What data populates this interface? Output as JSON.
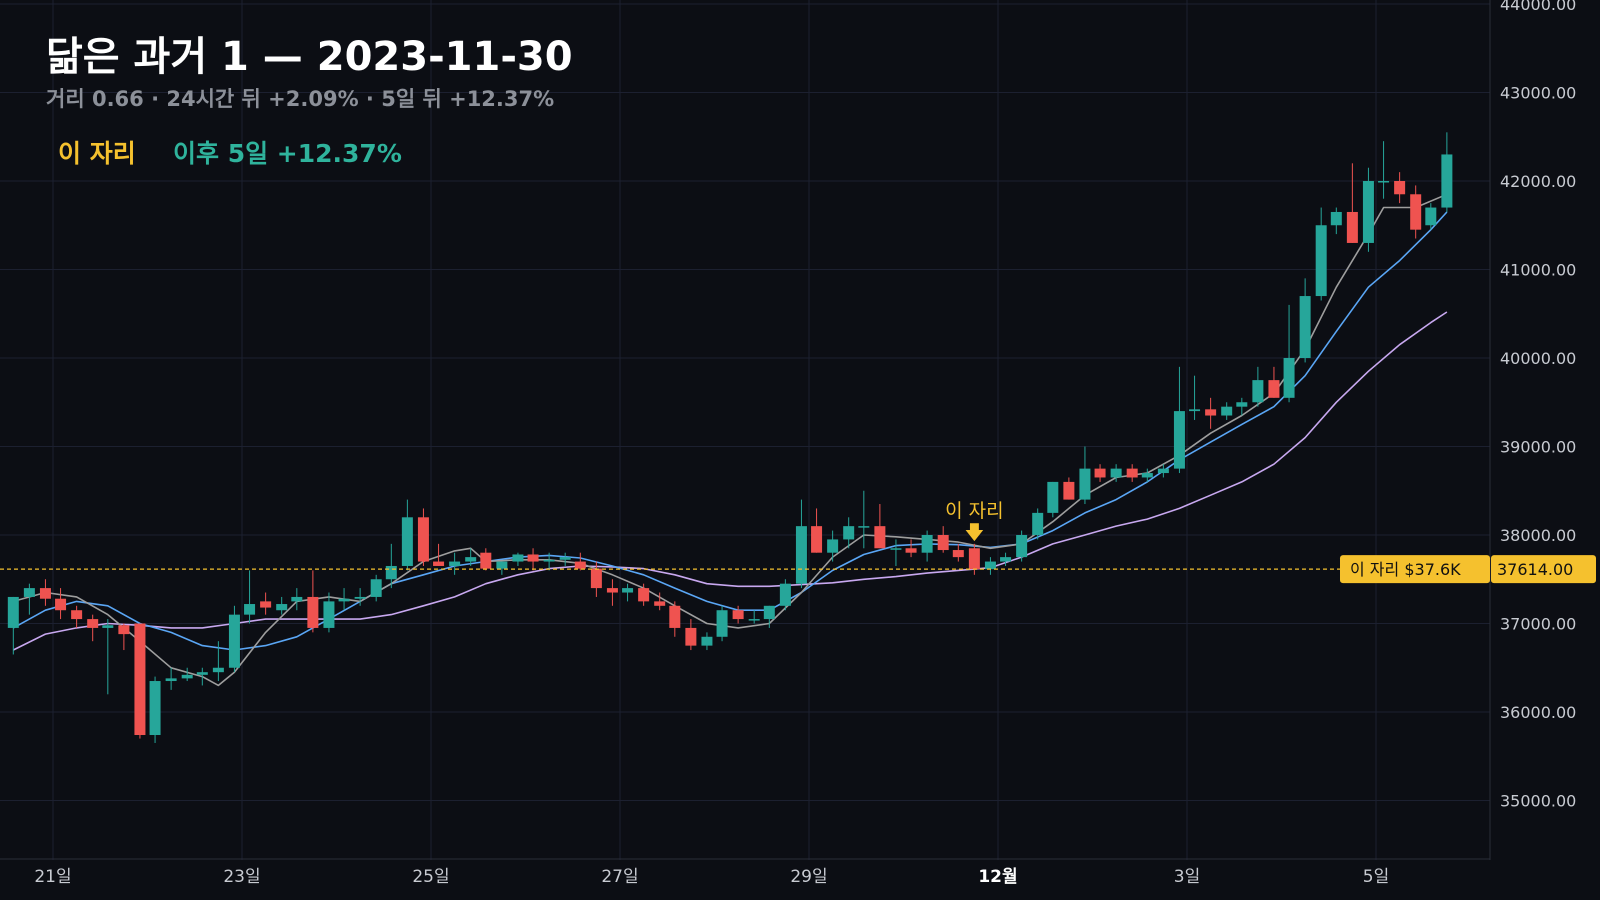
{
  "header": {
    "title": "닮은 과거 1 — 2023-11-30",
    "subtitle": "거리 0.66 · 24시간 뒤 +2.09% · 5일 뒤 +12.37%",
    "highlight_label": "이 자리",
    "highlight_result": "이후 5일 +12.37%"
  },
  "colors": {
    "background": "#0c0e14",
    "grid": "#1c2030",
    "up": "#26a69a",
    "down": "#ef5350",
    "ma_fast": "#9e9e9e",
    "ma_mid": "#5aa6f5",
    "ma_slow": "#c8a8f0",
    "marker": "#f5c12e"
  },
  "chart_data": {
    "type": "candlestick",
    "x_unit": "day-of-month (Nov 20 – Dec 5, 2023)",
    "ylim": [
      34300,
      44000
    ],
    "y_ticks": [
      "44000.00",
      "43000.00",
      "42000.00",
      "41000.00",
      "40000.00",
      "39000.00",
      "38000.00",
      "37000.00",
      "36000.00",
      "35000.00"
    ],
    "x_ticks": [
      {
        "x": 21,
        "label": "21일",
        "bold": false
      },
      {
        "x": 23,
        "label": "23일",
        "bold": false
      },
      {
        "x": 25,
        "label": "25일",
        "bold": false
      },
      {
        "x": 27,
        "label": "27일",
        "bold": false
      },
      {
        "x": 29,
        "label": "29일",
        "bold": false
      },
      {
        "x": 31,
        "label": "12월",
        "bold": true
      },
      {
        "x": 33,
        "label": "3일",
        "bold": false
      },
      {
        "x": 35,
        "label": "5일",
        "bold": false
      }
    ],
    "grid": true,
    "candles": [
      [
        20.58,
        36950,
        37300,
        36650,
        37300
      ],
      [
        20.75,
        37300,
        37450,
        37100,
        37400
      ],
      [
        20.92,
        37400,
        37500,
        37200,
        37280
      ],
      [
        21.08,
        37280,
        37400,
        37050,
        37150
      ],
      [
        21.25,
        37150,
        37200,
        36950,
        37050
      ],
      [
        21.42,
        37050,
        37100,
        36800,
        36950
      ],
      [
        21.58,
        36950,
        37050,
        36200,
        36980
      ],
      [
        21.75,
        36980,
        37000,
        36700,
        36880
      ],
      [
        21.92,
        37000,
        37000,
        35700,
        35740
      ],
      [
        22.08,
        35740,
        36400,
        35650,
        36350
      ],
      [
        22.25,
        36350,
        36500,
        36250,
        36380
      ],
      [
        22.42,
        36380,
        36500,
        36350,
        36420
      ],
      [
        22.58,
        36420,
        36500,
        36300,
        36450
      ],
      [
        22.75,
        36450,
        36800,
        36350,
        36500
      ],
      [
        22.92,
        36500,
        37200,
        36450,
        37100
      ],
      [
        23.08,
        37100,
        37600,
        37000,
        37220
      ],
      [
        23.25,
        37250,
        37350,
        37100,
        37180
      ],
      [
        23.42,
        37150,
        37300,
        37100,
        37220
      ],
      [
        23.58,
        37250,
        37400,
        37150,
        37300
      ],
      [
        23.75,
        37300,
        37600,
        36900,
        36950
      ],
      [
        23.92,
        36950,
        37350,
        36900,
        37250
      ],
      [
        24.08,
        37250,
        37400,
        37150,
        37280
      ],
      [
        24.25,
        37280,
        37400,
        37200,
        37300
      ],
      [
        24.42,
        37300,
        37550,
        37250,
        37500
      ],
      [
        24.58,
        37500,
        37900,
        37400,
        37650
      ],
      [
        24.75,
        37650,
        38400,
        37600,
        38200
      ],
      [
        24.92,
        38200,
        38300,
        37650,
        37700
      ],
      [
        25.08,
        37700,
        37900,
        37650,
        37650
      ],
      [
        25.25,
        37650,
        37800,
        37550,
        37700
      ],
      [
        25.42,
        37700,
        37850,
        37650,
        37750
      ],
      [
        25.58,
        37800,
        37850,
        37600,
        37620
      ],
      [
        25.75,
        37620,
        37700,
        37550,
        37700
      ],
      [
        25.92,
        37700,
        37800,
        37650,
        37780
      ],
      [
        26.08,
        37780,
        37850,
        37600,
        37700
      ],
      [
        26.25,
        37700,
        37800,
        37600,
        37720
      ],
      [
        26.42,
        37720,
        37800,
        37650,
        37750
      ],
      [
        26.58,
        37700,
        37800,
        37600,
        37620
      ],
      [
        26.75,
        37620,
        37700,
        37300,
        37400
      ],
      [
        26.92,
        37400,
        37500,
        37200,
        37350
      ],
      [
        27.08,
        37350,
        37450,
        37250,
        37400
      ],
      [
        27.25,
        37400,
        37450,
        37200,
        37250
      ],
      [
        27.42,
        37250,
        37350,
        37150,
        37200
      ],
      [
        27.58,
        37200,
        37250,
        36850,
        36950
      ],
      [
        27.75,
        36950,
        37050,
        36700,
        36750
      ],
      [
        27.92,
        36750,
        36900,
        36700,
        36850
      ],
      [
        28.08,
        36850,
        37200,
        36800,
        37150
      ],
      [
        28.25,
        37150,
        37200,
        37000,
        37050
      ],
      [
        28.42,
        37050,
        37150,
        37000,
        37050
      ],
      [
        28.58,
        37050,
        37200,
        36950,
        37200
      ],
      [
        28.75,
        37200,
        37500,
        37150,
        37450
      ],
      [
        28.92,
        37450,
        38400,
        37400,
        38100
      ],
      [
        29.08,
        38100,
        38300,
        37800,
        37800
      ],
      [
        29.25,
        37800,
        38050,
        37700,
        37950
      ],
      [
        29.42,
        37950,
        38200,
        37850,
        38100
      ],
      [
        29.58,
        38100,
        38500,
        37850,
        38100
      ],
      [
        29.75,
        38100,
        38350,
        37850,
        37850
      ],
      [
        29.92,
        37850,
        37950,
        37650,
        37850
      ],
      [
        30.08,
        37850,
        37950,
        37750,
        37800
      ],
      [
        30.25,
        37800,
        38050,
        37700,
        38000
      ],
      [
        30.42,
        38000,
        38100,
        37800,
        37830
      ],
      [
        30.58,
        37830,
        37900,
        37700,
        37750
      ],
      [
        30.75,
        37850,
        37900,
        37550,
        37614
      ],
      [
        30.92,
        37614,
        37750,
        37550,
        37700
      ],
      [
        31.08,
        37700,
        37800,
        37650,
        37750
      ],
      [
        31.25,
        37750,
        38050,
        37700,
        38000
      ],
      [
        31.42,
        38000,
        38300,
        37950,
        38250
      ],
      [
        31.58,
        38250,
        38600,
        38200,
        38600
      ],
      [
        31.75,
        38600,
        38650,
        38400,
        38400
      ],
      [
        31.92,
        38400,
        39000,
        38350,
        38750
      ],
      [
        32.08,
        38750,
        38800,
        38600,
        38650
      ],
      [
        32.25,
        38650,
        38800,
        38600,
        38750
      ],
      [
        32.42,
        38750,
        38800,
        38600,
        38650
      ],
      [
        32.58,
        38650,
        38750,
        38600,
        38700
      ],
      [
        32.75,
        38700,
        38800,
        38650,
        38750
      ],
      [
        32.92,
        38750,
        39900,
        38700,
        39400
      ],
      [
        33.08,
        39400,
        39800,
        39300,
        39420
      ],
      [
        33.25,
        39420,
        39550,
        39200,
        39350
      ],
      [
        33.42,
        39350,
        39500,
        39300,
        39450
      ],
      [
        33.58,
        39450,
        39550,
        39350,
        39500
      ],
      [
        33.75,
        39500,
        39900,
        39450,
        39750
      ],
      [
        33.92,
        39750,
        39900,
        39550,
        39550
      ],
      [
        34.08,
        39550,
        40600,
        39500,
        40000
      ],
      [
        34.25,
        40000,
        40900,
        39950,
        40700
      ],
      [
        34.42,
        40700,
        41700,
        40650,
        41500
      ],
      [
        34.58,
        41500,
        41700,
        41400,
        41650
      ],
      [
        34.75,
        41650,
        42200,
        41300,
        41300
      ],
      [
        34.92,
        41300,
        42150,
        41200,
        42000
      ],
      [
        35.08,
        42000,
        42450,
        41800,
        42000
      ],
      [
        35.25,
        42000,
        42100,
        41750,
        41850
      ],
      [
        35.42,
        41850,
        41950,
        41350,
        41450
      ],
      [
        35.58,
        41500,
        41750,
        41450,
        41700
      ],
      [
        35.75,
        41700,
        42550,
        41650,
        42300
      ]
    ],
    "ma_fast": [
      [
        20.58,
        37250
      ],
      [
        20.92,
        37350
      ],
      [
        21.25,
        37300
      ],
      [
        21.58,
        37100
      ],
      [
        21.92,
        36800
      ],
      [
        22.25,
        36500
      ],
      [
        22.58,
        36400
      ],
      [
        22.75,
        36300
      ],
      [
        22.92,
        36450
      ],
      [
        23.25,
        36900
      ],
      [
        23.58,
        37250
      ],
      [
        23.92,
        37300
      ],
      [
        24.25,
        37250
      ],
      [
        24.58,
        37450
      ],
      [
        24.92,
        37700
      ],
      [
        25.25,
        37820
      ],
      [
        25.42,
        37850
      ],
      [
        25.58,
        37700
      ],
      [
        25.92,
        37720
      ],
      [
        26.25,
        37720
      ],
      [
        26.58,
        37680
      ],
      [
        26.92,
        37550
      ],
      [
        27.25,
        37400
      ],
      [
        27.58,
        37200
      ],
      [
        27.92,
        37000
      ],
      [
        28.25,
        36950
      ],
      [
        28.58,
        37000
      ],
      [
        28.92,
        37350
      ],
      [
        29.25,
        37750
      ],
      [
        29.58,
        38000
      ],
      [
        29.92,
        37980
      ],
      [
        30.25,
        37950
      ],
      [
        30.58,
        37920
      ],
      [
        30.92,
        37850
      ],
      [
        31.25,
        37900
      ],
      [
        31.58,
        38150
      ],
      [
        31.92,
        38450
      ],
      [
        32.25,
        38650
      ],
      [
        32.58,
        38700
      ],
      [
        32.92,
        38900
      ],
      [
        33.25,
        39150
      ],
      [
        33.58,
        39350
      ],
      [
        33.92,
        39600
      ],
      [
        34.25,
        40100
      ],
      [
        34.58,
        40800
      ],
      [
        34.92,
        41400
      ],
      [
        35.08,
        41700
      ],
      [
        35.42,
        41700
      ],
      [
        35.75,
        41850
      ]
    ],
    "ma_mid": [
      [
        20.58,
        36950
      ],
      [
        20.92,
        37150
      ],
      [
        21.25,
        37250
      ],
      [
        21.58,
        37200
      ],
      [
        21.92,
        37000
      ],
      [
        22.25,
        36900
      ],
      [
        22.58,
        36750
      ],
      [
        22.92,
        36700
      ],
      [
        23.25,
        36750
      ],
      [
        23.58,
        36850
      ],
      [
        23.92,
        37050
      ],
      [
        24.25,
        37250
      ],
      [
        24.58,
        37450
      ],
      [
        24.92,
        37550
      ],
      [
        25.25,
        37650
      ],
      [
        25.58,
        37700
      ],
      [
        25.92,
        37750
      ],
      [
        26.25,
        37770
      ],
      [
        26.58,
        37740
      ],
      [
        26.92,
        37650
      ],
      [
        27.25,
        37550
      ],
      [
        27.58,
        37400
      ],
      [
        27.92,
        37250
      ],
      [
        28.25,
        37150
      ],
      [
        28.58,
        37150
      ],
      [
        28.92,
        37350
      ],
      [
        29.25,
        37600
      ],
      [
        29.58,
        37780
      ],
      [
        29.92,
        37880
      ],
      [
        30.25,
        37900
      ],
      [
        30.58,
        37890
      ],
      [
        30.92,
        37860
      ],
      [
        31.25,
        37900
      ],
      [
        31.58,
        38050
      ],
      [
        31.92,
        38250
      ],
      [
        32.25,
        38400
      ],
      [
        32.58,
        38600
      ],
      [
        32.92,
        38850
      ],
      [
        33.25,
        39050
      ],
      [
        33.58,
        39250
      ],
      [
        33.92,
        39450
      ],
      [
        34.25,
        39800
      ],
      [
        34.58,
        40300
      ],
      [
        34.92,
        40800
      ],
      [
        35.25,
        41100
      ],
      [
        35.58,
        41450
      ],
      [
        35.75,
        41650
      ]
    ],
    "ma_slow": [
      [
        20.58,
        36700
      ],
      [
        20.92,
        36880
      ],
      [
        21.25,
        36950
      ],
      [
        21.58,
        37000
      ],
      [
        21.92,
        36980
      ],
      [
        22.25,
        36950
      ],
      [
        22.58,
        36950
      ],
      [
        22.92,
        37000
      ],
      [
        23.25,
        37050
      ],
      [
        23.58,
        37050
      ],
      [
        23.92,
        37050
      ],
      [
        24.25,
        37050
      ],
      [
        24.58,
        37100
      ],
      [
        24.92,
        37200
      ],
      [
        25.25,
        37300
      ],
      [
        25.58,
        37450
      ],
      [
        25.92,
        37550
      ],
      [
        26.25,
        37620
      ],
      [
        26.58,
        37650
      ],
      [
        26.92,
        37640
      ],
      [
        27.25,
        37620
      ],
      [
        27.58,
        37550
      ],
      [
        27.92,
        37450
      ],
      [
        28.25,
        37420
      ],
      [
        28.58,
        37420
      ],
      [
        28.92,
        37440
      ],
      [
        29.25,
        37460
      ],
      [
        29.58,
        37500
      ],
      [
        29.92,
        37530
      ],
      [
        30.25,
        37570
      ],
      [
        30.58,
        37600
      ],
      [
        30.92,
        37630
      ],
      [
        31.25,
        37750
      ],
      [
        31.58,
        37900
      ],
      [
        31.92,
        38000
      ],
      [
        32.25,
        38100
      ],
      [
        32.58,
        38180
      ],
      [
        32.92,
        38300
      ],
      [
        33.25,
        38450
      ],
      [
        33.58,
        38600
      ],
      [
        33.92,
        38800
      ],
      [
        34.25,
        39100
      ],
      [
        34.58,
        39500
      ],
      [
        34.92,
        39850
      ],
      [
        35.25,
        40150
      ],
      [
        35.58,
        40400
      ],
      [
        35.75,
        40520
      ]
    ],
    "reference": {
      "price": 37614,
      "price_label": "37614.00",
      "tag": "이 자리 $37.6K"
    },
    "marker": {
      "x": 30.75,
      "label": "이 자리",
      "arrow": "🡇"
    }
  }
}
